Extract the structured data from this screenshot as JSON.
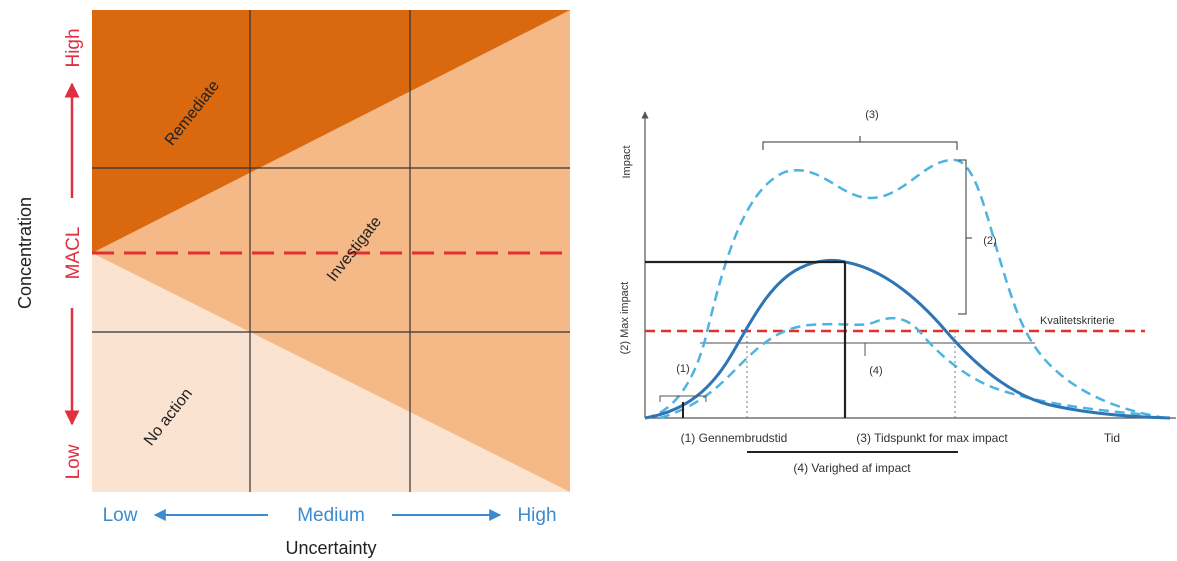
{
  "matrix": {
    "y_axis_title": "Concentration",
    "y_low": "Low",
    "y_mid": "MACL",
    "y_high": "High",
    "x_axis_title": "Uncertainty",
    "x_low": "Low",
    "x_mid": "Medium",
    "x_high": "High",
    "zone_remediate": "Remediate",
    "zone_investigate": "Investigate",
    "zone_no_action": "No action",
    "colors": {
      "remediate": "#d9680f",
      "investigate": "#f5b887",
      "no_action": "#fbe3d2",
      "threshold": "#e03030",
      "red_label": "#e03040",
      "blue_label": "#3a8bd0"
    }
  },
  "impact_diagram": {
    "y_axis_label": "Impact",
    "x_axis_label": "Tid",
    "max_impact_label": "(2) Max impact",
    "quality_criterion": "Kvalitetskriterie",
    "bracket_3_top": "(3)",
    "bracket_2_right": "(2)",
    "bracket_1_small": "(1)",
    "label_4_mid": "(4)",
    "breakthrough_time": "(1) Gennembrudstid",
    "time_of_max_impact": "(3) Tidspunkt for max impact",
    "duration_of_impact": "(4) Varighed af impact",
    "colors": {
      "solid_curve": "#2e75b6",
      "dashed_curve": "#4db3e0",
      "criterion_line": "#e03030",
      "duration_line": "#a6a6a6"
    }
  }
}
